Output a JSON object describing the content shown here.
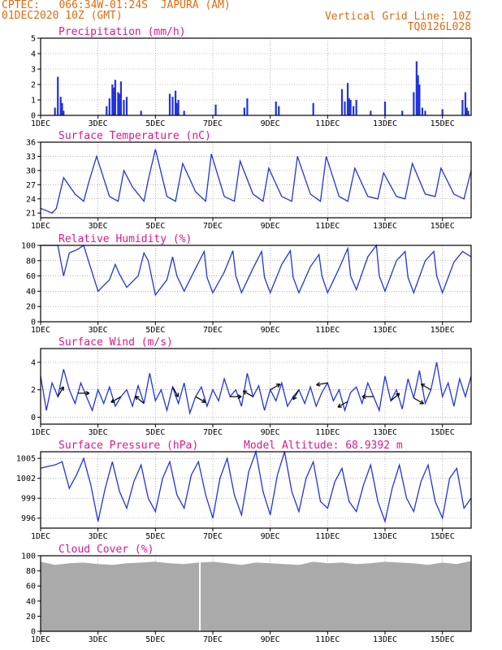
{
  "header": {
    "line1": "CPTEC:   066:34W-01:24S  JAPURA (AM)",
    "line2": "01DEC2020 10Z (GMT)",
    "right1": "Vertical Grid Line: 10Z",
    "right2": "TQ0126L028"
  },
  "chart_data": [
    {
      "type": "bar",
      "title": "Precipitation (mm/h)",
      "ylim": [
        0,
        5
      ],
      "yticks": [
        "0",
        "1",
        "2",
        "3",
        "4",
        "5"
      ],
      "xticks": [
        "1DEC",
        "3DEC",
        "5DEC",
        "7DEC",
        "9DEC",
        "11DEC",
        "13DEC",
        "15DEC"
      ],
      "color": "#2233dd",
      "x": [
        1.5,
        1.6,
        1.7,
        1.75,
        1.8,
        3.3,
        3.4,
        3.5,
        3.55,
        3.6,
        3.7,
        3.75,
        3.8,
        3.9,
        4.0,
        4.5,
        5.5,
        5.6,
        5.7,
        5.75,
        5.8,
        6.0,
        7.1,
        8.1,
        8.2,
        9.2,
        9.3,
        10.5,
        11.5,
        11.6,
        11.7,
        11.75,
        11.8,
        11.9,
        12.0,
        12.5,
        13.0,
        13.6,
        14.0,
        14.1,
        14.15,
        14.2,
        14.3,
        14.4,
        15.0,
        15.7,
        15.8,
        15.85,
        15.9
      ],
      "values": [
        0.5,
        2.5,
        1.2,
        0.8,
        0.3,
        0.6,
        1.1,
        2.0,
        1.8,
        2.3,
        1.5,
        1.4,
        2.2,
        1.0,
        1.2,
        0.3,
        1.4,
        1.2,
        1.6,
        0.8,
        1.0,
        0.3,
        0.7,
        0.5,
        1.1,
        0.9,
        0.6,
        0.8,
        1.7,
        0.9,
        2.1,
        1.1,
        1.0,
        0.6,
        1.0,
        0.3,
        0.9,
        0.3,
        1.5,
        3.5,
        2.6,
        2.0,
        0.5,
        0.3,
        0.4,
        1.0,
        1.5,
        0.5,
        0.3
      ]
    },
    {
      "type": "line",
      "title": "Surface Temperature (nC)",
      "ylim": [
        20,
        36
      ],
      "yticks": [
        "21",
        "24",
        "27",
        "30",
        "33",
        "36"
      ],
      "xticks": [
        "1DEC",
        "3DEC",
        "5DEC",
        "7DEC",
        "9DEC",
        "11DEC",
        "13DEC",
        "15DEC"
      ],
      "x": [
        1,
        1.2,
        1.4,
        1.55,
        1.8,
        2.2,
        2.5,
        2.7,
        2.95,
        3.4,
        3.7,
        3.9,
        4.2,
        4.6,
        4.75,
        5.0,
        5.4,
        5.7,
        5.95,
        6.4,
        6.75,
        6.95,
        7.4,
        7.75,
        7.95,
        8.4,
        8.75,
        8.95,
        9.4,
        9.75,
        9.95,
        10.4,
        10.75,
        10.95,
        11.4,
        11.7,
        11.95,
        12.4,
        12.75,
        12.95,
        13.4,
        13.7,
        13.95,
        14.4,
        14.75,
        14.95,
        15.4,
        15.75,
        16
      ],
      "values": [
        22.0,
        21.5,
        21.0,
        22.0,
        28.5,
        25.0,
        23.5,
        28.0,
        33.0,
        24.5,
        23.5,
        30.0,
        26.5,
        23.5,
        28.0,
        34.5,
        24.5,
        23.5,
        31.5,
        25.5,
        23.5,
        33.5,
        24.5,
        23.5,
        32.0,
        25.0,
        23.5,
        30.5,
        24.5,
        23.5,
        33.0,
        25.0,
        23.5,
        33.0,
        24.5,
        23.5,
        30.5,
        24.5,
        24.0,
        29.5,
        24.5,
        24.0,
        31.5,
        25.0,
        24.5,
        30.5,
        25.0,
        24.0,
        30.0
      ]
    },
    {
      "type": "line",
      "title": "Relative Humidity (%)",
      "ylim": [
        0,
        100
      ],
      "yticks": [
        "0",
        "20",
        "40",
        "60",
        "80",
        "100"
      ],
      "xticks": [
        "1DEC",
        "3DEC",
        "5DEC",
        "7DEC",
        "9DEC",
        "11DEC",
        "13DEC",
        "15DEC"
      ],
      "x": [
        1,
        1.3,
        1.6,
        1.8,
        2.0,
        2.3,
        2.5,
        2.75,
        3.0,
        3.4,
        3.6,
        3.75,
        4.0,
        4.4,
        4.6,
        4.75,
        5.0,
        5.4,
        5.6,
        5.75,
        6.0,
        6.4,
        6.7,
        6.8,
        7.0,
        7.4,
        7.7,
        7.8,
        8.0,
        8.4,
        8.7,
        8.8,
        9.0,
        9.4,
        9.7,
        9.8,
        10.0,
        10.4,
        10.7,
        10.8,
        11.0,
        11.4,
        11.7,
        11.8,
        12.0,
        12.4,
        12.7,
        12.8,
        13.0,
        13.4,
        13.7,
        13.8,
        14.0,
        14.4,
        14.7,
        14.8,
        15.0,
        15.4,
        15.7,
        16
      ],
      "values": [
        100,
        100,
        100,
        60,
        90,
        95,
        100,
        70,
        40,
        55,
        75,
        62,
        45,
        60,
        90,
        80,
        35,
        55,
        85,
        60,
        40,
        70,
        92,
        58,
        38,
        65,
        93,
        60,
        38,
        70,
        92,
        58,
        38,
        75,
        93,
        58,
        38,
        72,
        88,
        60,
        38,
        70,
        96,
        60,
        42,
        85,
        100,
        60,
        40,
        80,
        92,
        58,
        38,
        80,
        92,
        60,
        38,
        78,
        92,
        85
      ]
    },
    {
      "type": "line",
      "title": "Surface Wind (m/s)",
      "ylim": [
        -0.5,
        5
      ],
      "yticks": [
        "0",
        "2",
        "4"
      ],
      "xticks": [
        "1DEC",
        "3DEC",
        "5DEC",
        "7DEC",
        "9DEC",
        "11DEC",
        "13DEC",
        "15DEC"
      ],
      "arrows_at_x": [
        1.6,
        2.3,
        3.8,
        4.6,
        5.6,
        6.4,
        7.6,
        8.4,
        9.0,
        10.0,
        11.0,
        11.7,
        12.6,
        13.2,
        14.0,
        14.6
      ],
      "x": [
        1,
        1.2,
        1.4,
        1.6,
        1.8,
        2.0,
        2.2,
        2.4,
        2.6,
        2.8,
        3.0,
        3.2,
        3.4,
        3.6,
        3.8,
        4.0,
        4.2,
        4.4,
        4.6,
        4.8,
        5.0,
        5.2,
        5.4,
        5.6,
        5.8,
        6.0,
        6.2,
        6.4,
        6.6,
        6.8,
        7.0,
        7.2,
        7.4,
        7.6,
        7.8,
        8.0,
        8.2,
        8.4,
        8.6,
        8.8,
        9.0,
        9.2,
        9.4,
        9.6,
        9.8,
        10.0,
        10.2,
        10.4,
        10.6,
        10.8,
        11.0,
        11.2,
        11.4,
        11.6,
        11.8,
        12.0,
        12.2,
        12.4,
        12.6,
        12.8,
        13.0,
        13.2,
        13.4,
        13.6,
        13.8,
        14.0,
        14.2,
        14.4,
        14.6,
        14.8,
        15.0,
        15.2,
        15.4,
        15.6,
        15.8,
        16
      ],
      "values": [
        3.0,
        0.5,
        2.5,
        1.5,
        3.5,
        2.0,
        1.0,
        2.5,
        1.5,
        0.5,
        2.0,
        1.0,
        2.2,
        0.8,
        1.5,
        2.0,
        0.8,
        2.3,
        1.0,
        3.2,
        1.2,
        2.0,
        0.5,
        2.2,
        1.0,
        2.5,
        0.3,
        1.5,
        2.2,
        0.8,
        2.0,
        1.2,
        2.8,
        1.5,
        2.0,
        0.8,
        3.2,
        1.5,
        2.3,
        0.5,
        2.0,
        1.2,
        2.5,
        0.8,
        1.5,
        2.0,
        1.0,
        2.2,
        0.8,
        1.8,
        2.5,
        1.2,
        2.0,
        0.5,
        1.8,
        2.2,
        1.0,
        2.5,
        1.5,
        0.5,
        3.0,
        1.2,
        2.0,
        0.6,
        2.8,
        1.4,
        3.4,
        1.0,
        2.0,
        4.0,
        1.5,
        2.5,
        0.8,
        2.8,
        1.5,
        3.0
      ]
    },
    {
      "type": "line",
      "title": "Surface Pressure (hPa)",
      "annotation": "Model Altitude: 68.9392 m",
      "ylim": [
        994.5,
        1006
      ],
      "yticks": [
        "996",
        "999",
        "1002",
        "1005"
      ],
      "xticks": [
        "1DEC",
        "3DEC",
        "5DEC",
        "7DEC",
        "9DEC",
        "11DEC",
        "13DEC",
        "15DEC"
      ],
      "x": [
        1,
        1.25,
        1.5,
        1.75,
        2.0,
        2.25,
        2.5,
        2.75,
        3.0,
        3.25,
        3.5,
        3.75,
        4.0,
        4.25,
        4.5,
        4.75,
        5.0,
        5.25,
        5.5,
        5.75,
        6.0,
        6.25,
        6.5,
        6.75,
        7.0,
        7.25,
        7.5,
        7.75,
        8.0,
        8.25,
        8.5,
        8.75,
        9.0,
        9.25,
        9.5,
        9.75,
        10.0,
        10.25,
        10.5,
        10.75,
        11.0,
        11.25,
        11.5,
        11.75,
        12.0,
        12.25,
        12.5,
        12.75,
        13.0,
        13.25,
        13.5,
        13.75,
        14.0,
        14.25,
        14.5,
        14.75,
        15.0,
        15.25,
        15.5,
        15.75,
        16
      ],
      "values": [
        1003.5,
        1003.8,
        1004.0,
        1004.5,
        1000.5,
        1002.5,
        1005.0,
        1001.0,
        995.5,
        1000.5,
        1004.5,
        1000.0,
        997.5,
        1001.5,
        1004.0,
        999.0,
        997.0,
        1002.0,
        1004.5,
        999.5,
        997.5,
        1002.5,
        1004.5,
        999.5,
        996.0,
        1002.0,
        1005.0,
        999.5,
        996.5,
        1003.0,
        1006.0,
        1000.0,
        996.5,
        1002.5,
        1006.0,
        1000.0,
        997.0,
        1002.0,
        1004.5,
        998.5,
        997.5,
        1001.5,
        1003.5,
        998.5,
        997.0,
        1001.0,
        1004.0,
        998.5,
        995.5,
        1000.5,
        1004.0,
        999.0,
        997.0,
        1001.5,
        1004.0,
        998.5,
        996.0,
        1002.0,
        1003.5,
        997.5,
        999.0
      ]
    },
    {
      "type": "area",
      "title": "Cloud Cover (%)",
      "ylim": [
        0,
        100
      ],
      "yticks": [
        "0",
        "20",
        "40",
        "60",
        "80",
        "100"
      ],
      "xticks": [
        "1DEC",
        "3DEC",
        "5DEC",
        "7DEC",
        "9DEC",
        "11DEC",
        "13DEC",
        "15DEC"
      ],
      "color": "#aaaaaa",
      "gap_at_x": 6.55,
      "x": [
        1,
        1.5,
        2,
        2.5,
        3,
        3.5,
        4,
        4.5,
        5,
        5.5,
        6,
        6.5,
        7,
        7.5,
        8,
        8.5,
        9,
        9.5,
        10,
        10.5,
        11,
        11.5,
        12,
        12.5,
        13,
        13.5,
        14,
        14.5,
        15,
        15.5,
        16
      ],
      "values": [
        92,
        88,
        90,
        91,
        89,
        88,
        90,
        91,
        92,
        90,
        89,
        91,
        92,
        90,
        88,
        91,
        90,
        89,
        88,
        92,
        90,
        91,
        89,
        90,
        92,
        91,
        90,
        88,
        91,
        89,
        93
      ]
    }
  ]
}
